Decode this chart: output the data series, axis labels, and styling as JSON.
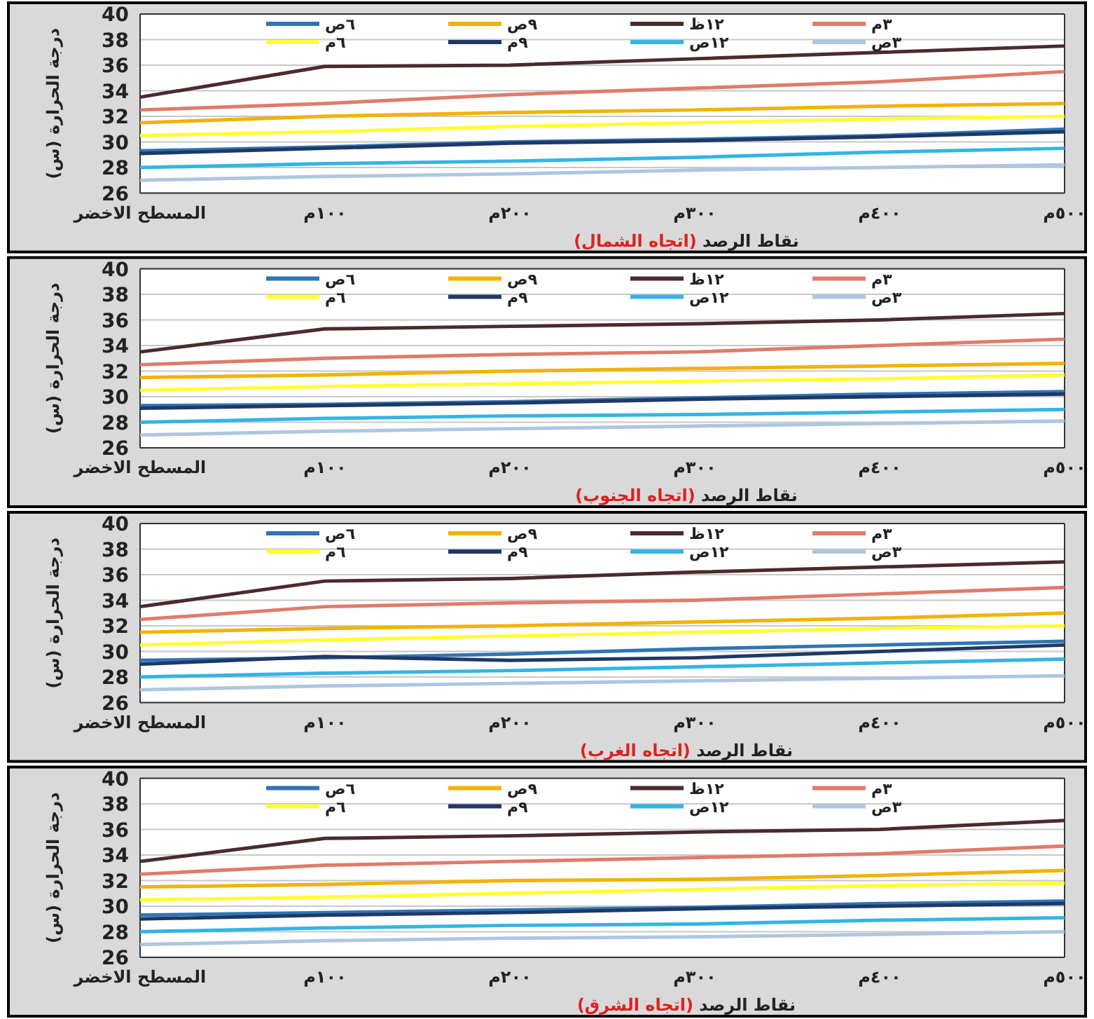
{
  "chart_data": [
    {
      "type": "line",
      "xlabel": "نقاط الرصد (اتجاه الشمال)",
      "ylabel": "درجة الحرارة (س)",
      "categories": [
        "المسطح الاخضر",
        "١٠٠م",
        "٢٠٠م",
        "٣٠٠م",
        "٤٠٠م",
        "٥٠٠م"
      ],
      "ylim": [
        26,
        40
      ],
      "yticks": [
        26,
        28,
        30,
        32,
        34,
        36,
        38,
        40
      ],
      "grid": "y",
      "legend": "top",
      "series": [
        {
          "name": "٦ص",
          "color": "#2e75b6",
          "values": [
            29.3,
            29.6,
            30.0,
            30.2,
            30.5,
            31.0
          ]
        },
        {
          "name": "٩ص",
          "color": "#f2b200",
          "values": [
            31.5,
            32.0,
            32.3,
            32.5,
            32.8,
            33.0
          ]
        },
        {
          "name": "١٢ظ",
          "color": "#4a2b2b",
          "values": [
            33.5,
            35.9,
            36.0,
            36.5,
            37.0,
            37.5
          ]
        },
        {
          "name": "٣م",
          "color": "#e07b6a",
          "values": [
            32.5,
            33.0,
            33.7,
            34.2,
            34.7,
            35.5
          ]
        },
        {
          "name": "٦م",
          "color": "#ffff33",
          "values": [
            30.5,
            30.8,
            31.2,
            31.5,
            31.8,
            32.0
          ]
        },
        {
          "name": "٩م",
          "color": "#203864",
          "values": [
            29.1,
            29.5,
            29.9,
            30.1,
            30.4,
            30.8
          ]
        },
        {
          "name": "١٢ص",
          "color": "#33b5e5",
          "values": [
            28.0,
            28.3,
            28.5,
            28.8,
            29.2,
            29.5
          ]
        },
        {
          "name": "٣ص",
          "color": "#aec6e0",
          "values": [
            27.0,
            27.3,
            27.5,
            27.8,
            28.0,
            28.2
          ]
        }
      ]
    },
    {
      "type": "line",
      "xlabel": "نقاط الرصد (اتجاه الجنوب)",
      "ylabel": "درجة الحرارة (س)",
      "categories": [
        "المسطح الاخضر",
        "١٠٠م",
        "٢٠٠م",
        "٣٠٠م",
        "٤٠٠م",
        "٥٠٠م"
      ],
      "ylim": [
        26,
        40
      ],
      "yticks": [
        26,
        28,
        30,
        32,
        34,
        36,
        38,
        40
      ],
      "grid": "y",
      "legend": "top",
      "series": [
        {
          "name": "٦ص",
          "color": "#2e75b6",
          "values": [
            29.3,
            29.4,
            29.6,
            29.9,
            30.2,
            30.4
          ]
        },
        {
          "name": "٩ص",
          "color": "#f2b200",
          "values": [
            31.5,
            31.7,
            32.0,
            32.2,
            32.4,
            32.6
          ]
        },
        {
          "name": "١٢ظ",
          "color": "#4a2b2b",
          "values": [
            33.5,
            35.3,
            35.5,
            35.7,
            36.0,
            36.5
          ]
        },
        {
          "name": "٣م",
          "color": "#e07b6a",
          "values": [
            32.5,
            33.0,
            33.3,
            33.5,
            34.0,
            34.5
          ]
        },
        {
          "name": "٦م",
          "color": "#ffff33",
          "values": [
            30.5,
            30.8,
            31.0,
            31.2,
            31.4,
            31.7
          ]
        },
        {
          "name": "٩م",
          "color": "#203864",
          "values": [
            29.1,
            29.3,
            29.5,
            29.8,
            30.0,
            30.2
          ]
        },
        {
          "name": "١٢ص",
          "color": "#33b5e5",
          "values": [
            28.0,
            28.3,
            28.5,
            28.6,
            28.8,
            29.0
          ]
        },
        {
          "name": "٣ص",
          "color": "#aec6e0",
          "values": [
            27.0,
            27.3,
            27.5,
            27.7,
            27.9,
            28.1
          ]
        }
      ]
    },
    {
      "type": "line",
      "xlabel": "نقاط الرصد (اتجاه الغرب)",
      "ylabel": "درجة الحرارة (س)",
      "categories": [
        "المسطح الاخضر",
        "١٠٠م",
        "٢٠٠م",
        "٣٠٠م",
        "٤٠٠م",
        "٥٠٠م"
      ],
      "ylim": [
        26,
        40
      ],
      "yticks": [
        26,
        28,
        30,
        32,
        34,
        36,
        38,
        40
      ],
      "grid": "y",
      "legend": "top",
      "series": [
        {
          "name": "٦ص",
          "color": "#2e75b6",
          "values": [
            29.3,
            29.5,
            29.8,
            30.2,
            30.5,
            30.8
          ]
        },
        {
          "name": "٩ص",
          "color": "#f2b200",
          "values": [
            31.5,
            31.8,
            32.0,
            32.3,
            32.6,
            33.0
          ]
        },
        {
          "name": "١٢ظ",
          "color": "#4a2b2b",
          "values": [
            33.5,
            35.5,
            35.7,
            36.2,
            36.6,
            37.0
          ]
        },
        {
          "name": "٣م",
          "color": "#e07b6a",
          "values": [
            32.5,
            33.5,
            33.8,
            34.0,
            34.5,
            35.0
          ]
        },
        {
          "name": "٦م",
          "color": "#ffff33",
          "values": [
            30.5,
            30.9,
            31.2,
            31.5,
            31.8,
            32.0
          ]
        },
        {
          "name": "٩م",
          "color": "#203864",
          "values": [
            29.0,
            29.6,
            29.3,
            29.5,
            30.0,
            30.5
          ]
        },
        {
          "name": "١٢ص",
          "color": "#33b5e5",
          "values": [
            28.0,
            28.3,
            28.5,
            28.8,
            29.1,
            29.4
          ]
        },
        {
          "name": "٣ص",
          "color": "#aec6e0",
          "values": [
            27.0,
            27.3,
            27.5,
            27.7,
            27.9,
            28.1
          ]
        }
      ]
    },
    {
      "type": "line",
      "xlabel": "نقاط الرصد (اتجاه الشرق)",
      "ylabel": "درجة الحرارة (س)",
      "categories": [
        "المسطح الاخضر",
        "١٠٠م",
        "٢٠٠م",
        "٣٠٠م",
        "٤٠٠م",
        "٥٠٠م"
      ],
      "ylim": [
        26,
        40
      ],
      "yticks": [
        26,
        28,
        30,
        32,
        34,
        36,
        38,
        40
      ],
      "grid": "y",
      "legend": "top",
      "series": [
        {
          "name": "٦ص",
          "color": "#2e75b6",
          "values": [
            29.3,
            29.5,
            29.7,
            29.9,
            30.2,
            30.4
          ]
        },
        {
          "name": "٩ص",
          "color": "#f2b200",
          "values": [
            31.5,
            31.7,
            32.0,
            32.1,
            32.4,
            32.8
          ]
        },
        {
          "name": "١٢ظ",
          "color": "#4a2b2b",
          "values": [
            33.5,
            35.3,
            35.5,
            35.8,
            36.0,
            36.7
          ]
        },
        {
          "name": "٣م",
          "color": "#e07b6a",
          "values": [
            32.5,
            33.2,
            33.5,
            33.8,
            34.1,
            34.7
          ]
        },
        {
          "name": "٦م",
          "color": "#ffff33",
          "values": [
            30.5,
            30.7,
            31.0,
            31.3,
            31.6,
            31.8
          ]
        },
        {
          "name": "٩م",
          "color": "#203864",
          "values": [
            29.0,
            29.3,
            29.5,
            29.8,
            30.0,
            30.2
          ]
        },
        {
          "name": "١٢ص",
          "color": "#33b5e5",
          "values": [
            28.0,
            28.3,
            28.5,
            28.6,
            28.9,
            29.1
          ]
        },
        {
          "name": "٣ص",
          "color": "#aec6e0",
          "values": [
            27.0,
            27.3,
            27.5,
            27.6,
            27.8,
            28.0
          ]
        }
      ]
    }
  ]
}
